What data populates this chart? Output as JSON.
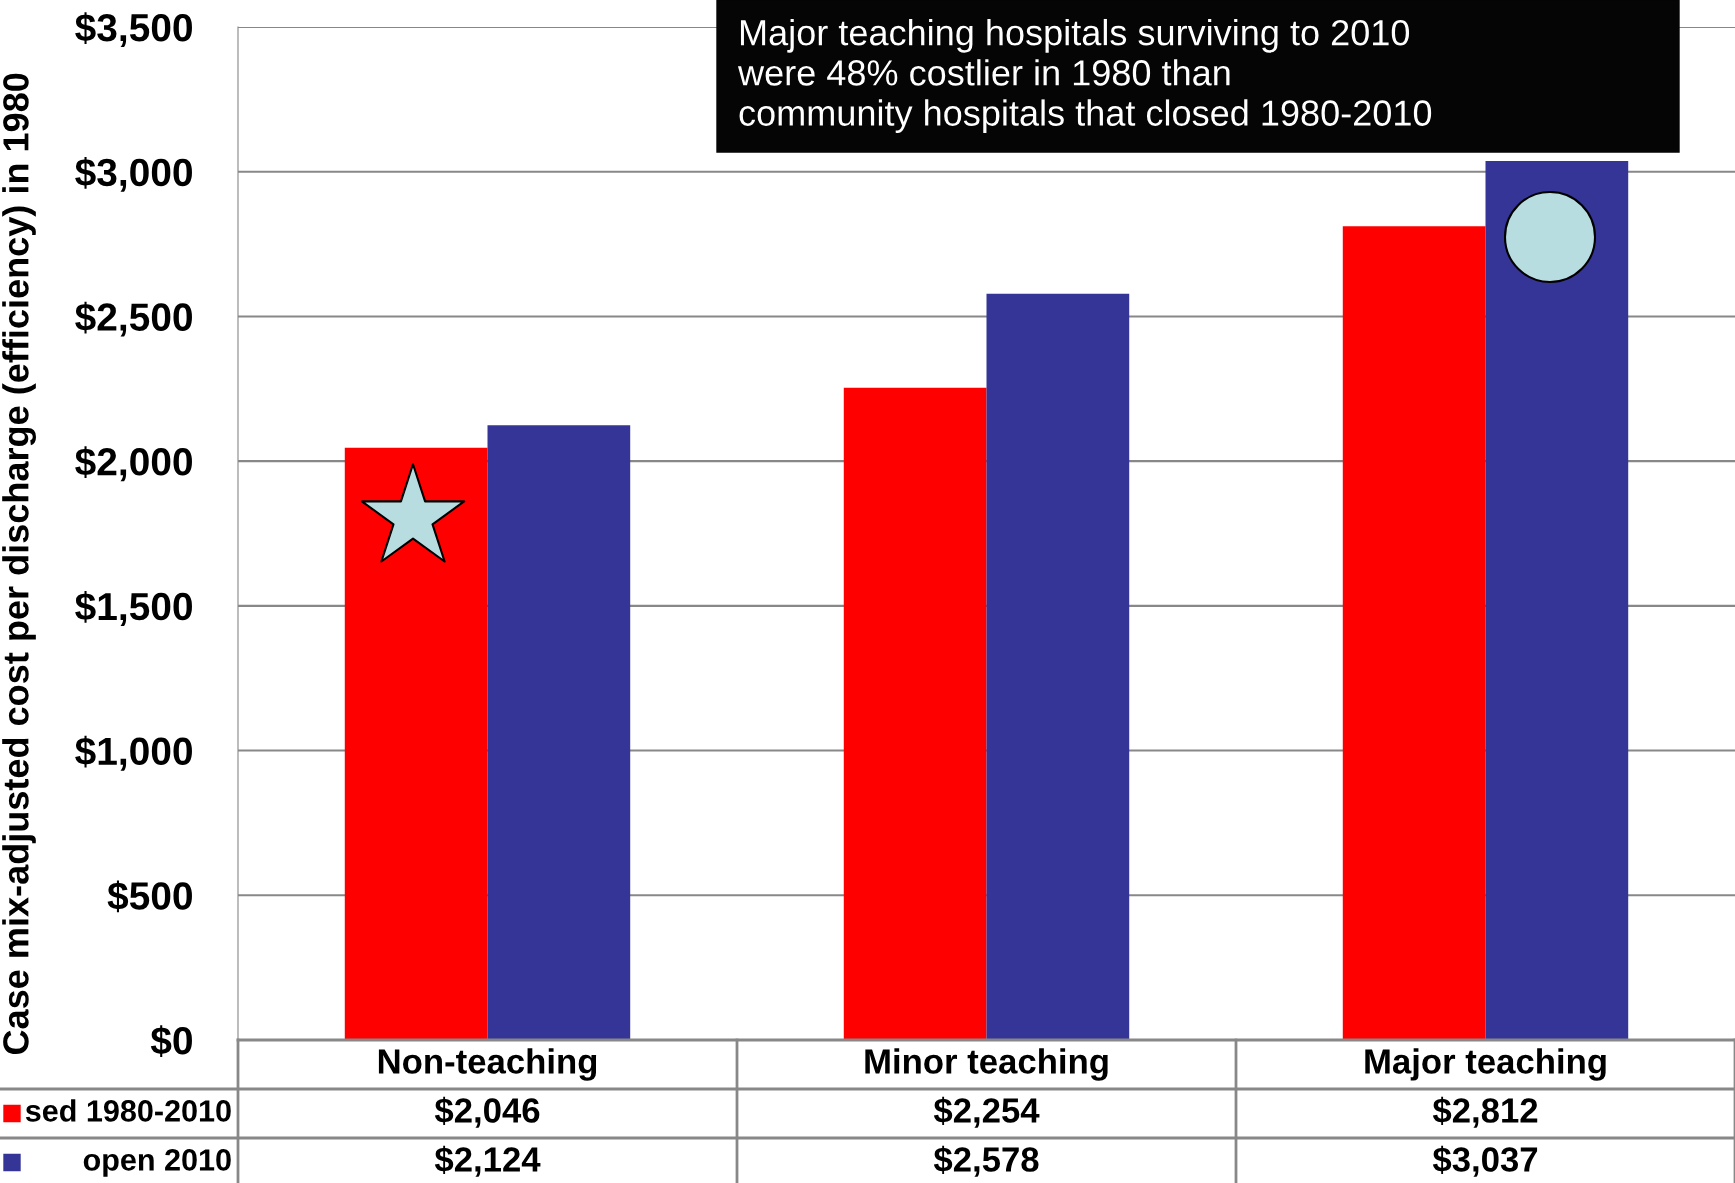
{
  "chart_data": {
    "type": "bar",
    "ylabel": "Case mix-adjusted cost per discharge (efficiency) in 1980",
    "categories": [
      "Non-teaching",
      "Minor teaching",
      "Major teaching"
    ],
    "series": [
      {
        "name": "sed 1980-2010",
        "color": "#ff0000",
        "values": [
          2046,
          2254,
          2812
        ],
        "value_labels": [
          "$2,046",
          "$2,254",
          "$2,812"
        ]
      },
      {
        "name": "open 2010",
        "color": "#353597",
        "values": [
          2124,
          2578,
          3037
        ],
        "value_labels": [
          "$2,124",
          "$2,578",
          "$3,037"
        ]
      }
    ],
    "ylim": [
      0,
      3500
    ],
    "yticks": [
      {
        "value": 0,
        "label": "$0"
      },
      {
        "value": 500,
        "label": "$500"
      },
      {
        "value": 1000,
        "label": "$1,000"
      },
      {
        "value": 1500,
        "label": "$1,500"
      },
      {
        "value": 2000,
        "label": "$2,000"
      },
      {
        "value": 2500,
        "label": "$2,500"
      },
      {
        "value": 3000,
        "label": "$3,000"
      },
      {
        "value": 3500,
        "label": "$3,500"
      }
    ],
    "grid": "y",
    "legend": "bottom",
    "annotations": [
      "Major teaching hospitals surviving to 2010\nwere 48% costlier in 1980 than\ncommunity hospitals that closed 1980-2010"
    ]
  }
}
